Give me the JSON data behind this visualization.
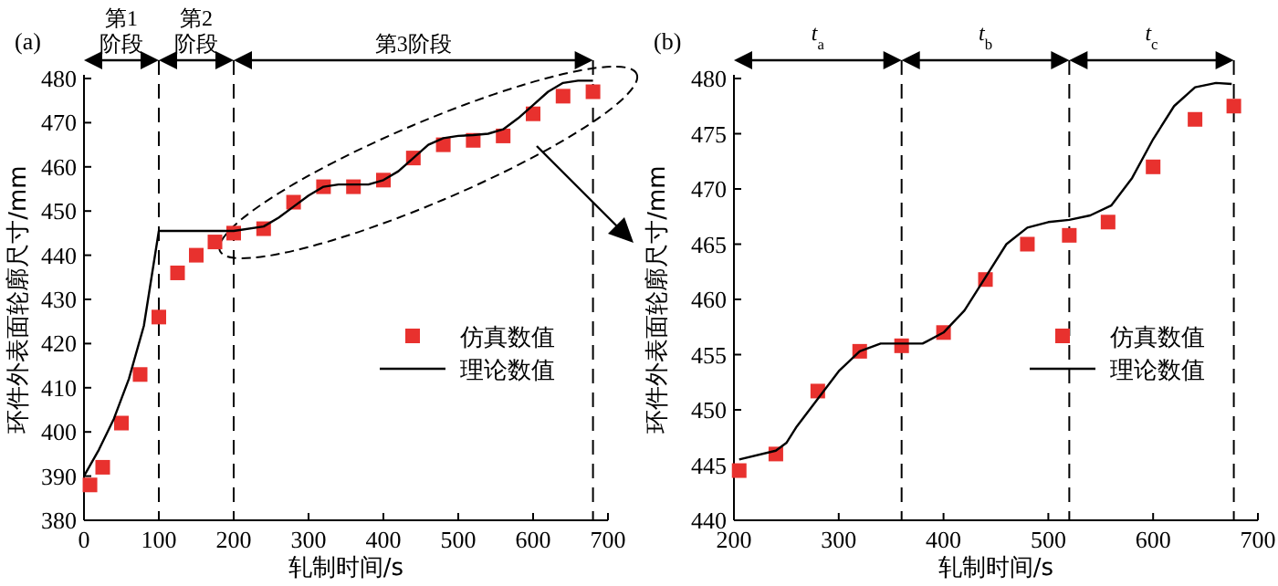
{
  "chart_data": [
    {
      "type": "scatter",
      "title": "(a)",
      "xlabel": "轧制时间/s",
      "ylabel": "环件外表面轮廓尺寸/mm",
      "xlim": [
        0,
        700
      ],
      "xticks": [
        0,
        100,
        200,
        300,
        400,
        500,
        600,
        700
      ],
      "ylim": [
        380,
        480
      ],
      "yticks": [
        380,
        390,
        400,
        410,
        420,
        430,
        440,
        450,
        460,
        470,
        480
      ],
      "legend": "right",
      "grid": false,
      "series": [
        {
          "name": "仿真数值",
          "type": "scatter",
          "marker": "square",
          "color": "#e8312e",
          "x": [
            8,
            25,
            50,
            75,
            100,
            125,
            150,
            175,
            200,
            240,
            280,
            320,
            360,
            400,
            440,
            480,
            520,
            560,
            600,
            640,
            680
          ],
          "values": [
            388,
            392,
            402,
            413,
            426,
            436,
            440,
            443,
            445,
            446,
            452,
            455.5,
            455.5,
            457,
            462,
            465,
            466,
            467,
            472,
            476,
            477
          ]
        },
        {
          "name": "理论数值",
          "type": "line",
          "color": "#000000",
          "x": [
            0,
            20,
            40,
            60,
            80,
            100,
            200,
            240,
            260,
            280,
            300,
            320,
            340,
            360,
            380,
            400,
            420,
            440,
            460,
            480,
            500,
            520,
            540,
            560,
            580,
            600,
            620,
            640,
            660,
            680
          ],
          "values": [
            390,
            396,
            403,
            412,
            424,
            445.5,
            445.5,
            446.5,
            448.5,
            451,
            453.5,
            455.5,
            456,
            456,
            456,
            457,
            459,
            462,
            465,
            466.5,
            467,
            467.2,
            467.5,
            468.5,
            471,
            474,
            477,
            479,
            479.5,
            479.5
          ]
        }
      ],
      "ref_lines": [
        {
          "axis": "x",
          "value": 100,
          "color": "#000000",
          "line_style": "dashed"
        },
        {
          "axis": "x",
          "value": 200,
          "color": "#000000",
          "line_style": "dashed"
        },
        {
          "axis": "x",
          "value": 680,
          "color": "#000000",
          "line_style": "dashed"
        }
      ],
      "annotations": [
        "第1阶段",
        "第2阶段",
        "第3阶段"
      ]
    },
    {
      "type": "scatter",
      "title": "(b)",
      "xlabel": "轧制时间/s",
      "ylabel": "环件外表面轮廓尺寸/mm",
      "xlim": [
        200,
        700
      ],
      "xticks": [
        200,
        300,
        400,
        500,
        600,
        700
      ],
      "ylim": [
        440,
        480
      ],
      "yticks": [
        440,
        445,
        450,
        455,
        460,
        465,
        470,
        475,
        480
      ],
      "legend": "right",
      "grid": false,
      "series": [
        {
          "name": "仿真数值",
          "type": "scatter",
          "marker": "square",
          "color": "#e8312e",
          "x": [
            205,
            240,
            280,
            320,
            360,
            400,
            440,
            480,
            520,
            557,
            600,
            640,
            677
          ],
          "values": [
            444.5,
            446,
            451.7,
            455.3,
            455.8,
            457,
            461.8,
            465,
            465.8,
            467,
            472,
            476.3,
            477.5
          ]
        },
        {
          "name": "理论数值",
          "type": "line",
          "color": "#000000",
          "x": [
            205,
            240,
            250,
            260,
            280,
            300,
            320,
            340,
            360,
            380,
            400,
            420,
            440,
            460,
            480,
            500,
            520,
            540,
            560,
            580,
            600,
            620,
            640,
            660,
            675
          ],
          "values": [
            445.5,
            446.3,
            447,
            448.5,
            451,
            453.5,
            455.3,
            456,
            456,
            456,
            457,
            459,
            462,
            465,
            466.5,
            467,
            467.2,
            467.6,
            468.5,
            471,
            474.5,
            477.5,
            479.2,
            479.6,
            479.5
          ]
        }
      ],
      "ref_lines": [
        {
          "axis": "x",
          "value": 360,
          "color": "#000000",
          "line_style": "dashed"
        },
        {
          "axis": "x",
          "value": 520,
          "color": "#000000",
          "line_style": "dashed"
        },
        {
          "axis": "x",
          "value": 677,
          "color": "#000000",
          "line_style": "dashed"
        }
      ],
      "annotations": [
        "t$_{a}$",
        "t$_{b}$",
        "t$_{c}$"
      ]
    }
  ]
}
